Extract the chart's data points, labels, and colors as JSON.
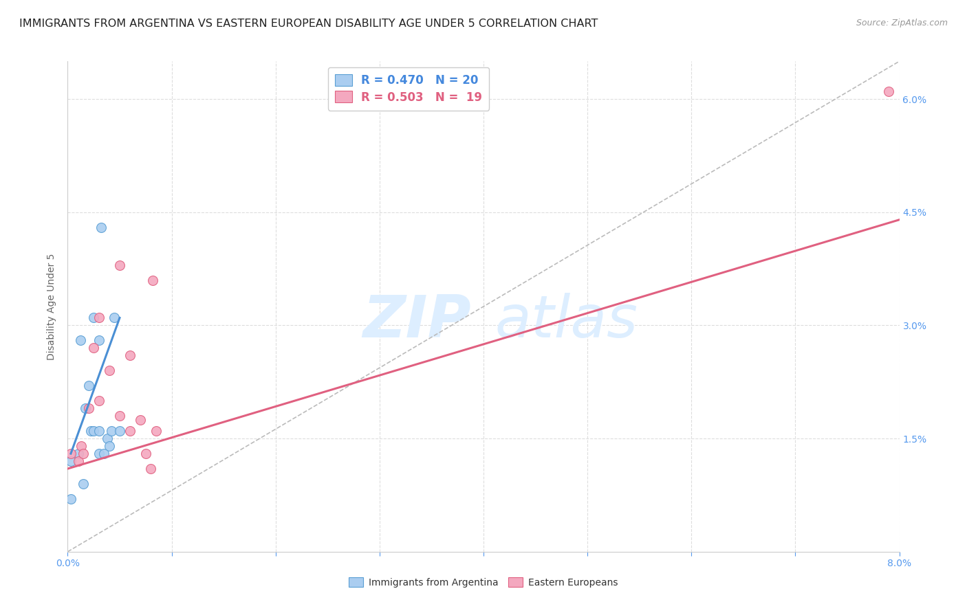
{
  "title": "IMMIGRANTS FROM ARGENTINA VS EASTERN EUROPEAN DISABILITY AGE UNDER 5 CORRELATION CHART",
  "source": "Source: ZipAtlas.com",
  "ylabel": "Disability Age Under 5",
  "xlim": [
    0.0,
    0.08
  ],
  "ylim": [
    0.0,
    0.065
  ],
  "argentina_color": "#aacdf0",
  "eastern_color": "#f4a8bf",
  "argentina_edge_color": "#5a9fd4",
  "eastern_edge_color": "#e06080",
  "argentina_trend_color": "#4a8fd4",
  "eastern_trend_color": "#e06080",
  "ref_line_color": "#bbbbbb",
  "grid_color": "#dddddd",
  "tick_color": "#5599ee",
  "bg_color": "#ffffff",
  "watermark_color": "#ddeeff",
  "title_fontsize": 11.5,
  "tick_fontsize": 10,
  "ylabel_fontsize": 10,
  "marker_size": 100,
  "argentina_points_x": [
    0.0003,
    0.001,
    0.0012,
    0.0015,
    0.0017,
    0.002,
    0.0022,
    0.0025,
    0.0025,
    0.003,
    0.003,
    0.003,
    0.0032,
    0.0035,
    0.0038,
    0.004,
    0.0042,
    0.0045,
    0.005,
    0.0003
  ],
  "argentina_points_y": [
    0.007,
    0.013,
    0.028,
    0.009,
    0.019,
    0.022,
    0.016,
    0.031,
    0.016,
    0.016,
    0.013,
    0.028,
    0.043,
    0.013,
    0.015,
    0.014,
    0.016,
    0.031,
    0.016,
    0.012
  ],
  "eastern_points_x": [
    0.0003,
    0.001,
    0.0013,
    0.0015,
    0.002,
    0.0025,
    0.003,
    0.003,
    0.004,
    0.005,
    0.005,
    0.006,
    0.006,
    0.007,
    0.0075,
    0.008,
    0.0082,
    0.0085,
    0.079
  ],
  "eastern_points_y": [
    0.013,
    0.012,
    0.014,
    0.013,
    0.019,
    0.027,
    0.02,
    0.031,
    0.024,
    0.018,
    0.038,
    0.026,
    0.016,
    0.0175,
    0.013,
    0.011,
    0.036,
    0.016,
    0.061
  ],
  "argentina_trend_x": [
    0.0003,
    0.005
  ],
  "argentina_trend_y": [
    0.013,
    0.031
  ],
  "eastern_trend_x": [
    0.0,
    0.08
  ],
  "eastern_trend_y": [
    0.011,
    0.044
  ],
  "ref_line_x": [
    0.0,
    0.08
  ],
  "ref_line_y": [
    0.0,
    0.065
  ],
  "xticks": [
    0.0,
    0.01,
    0.02,
    0.03,
    0.04,
    0.05,
    0.06,
    0.07,
    0.08
  ],
  "xtick_labels": [
    "0.0%",
    "",
    "",
    "",
    "",
    "",
    "",
    "",
    "8.0%"
  ],
  "yticks": [
    0.0,
    0.005,
    0.01,
    0.015,
    0.02,
    0.025,
    0.03,
    0.035,
    0.04,
    0.045,
    0.05,
    0.055,
    0.06
  ],
  "ytick_labels_right": [
    "",
    "",
    "",
    "1.5%",
    "",
    "",
    "3.0%",
    "",
    "",
    "4.5%",
    "",
    "",
    "6.0%"
  ],
  "legend_argentina_label": "Immigrants from Argentina",
  "legend_eastern_label": "Eastern Europeans",
  "legend_r1_color": "#4488dd",
  "legend_r2_color": "#e06080"
}
